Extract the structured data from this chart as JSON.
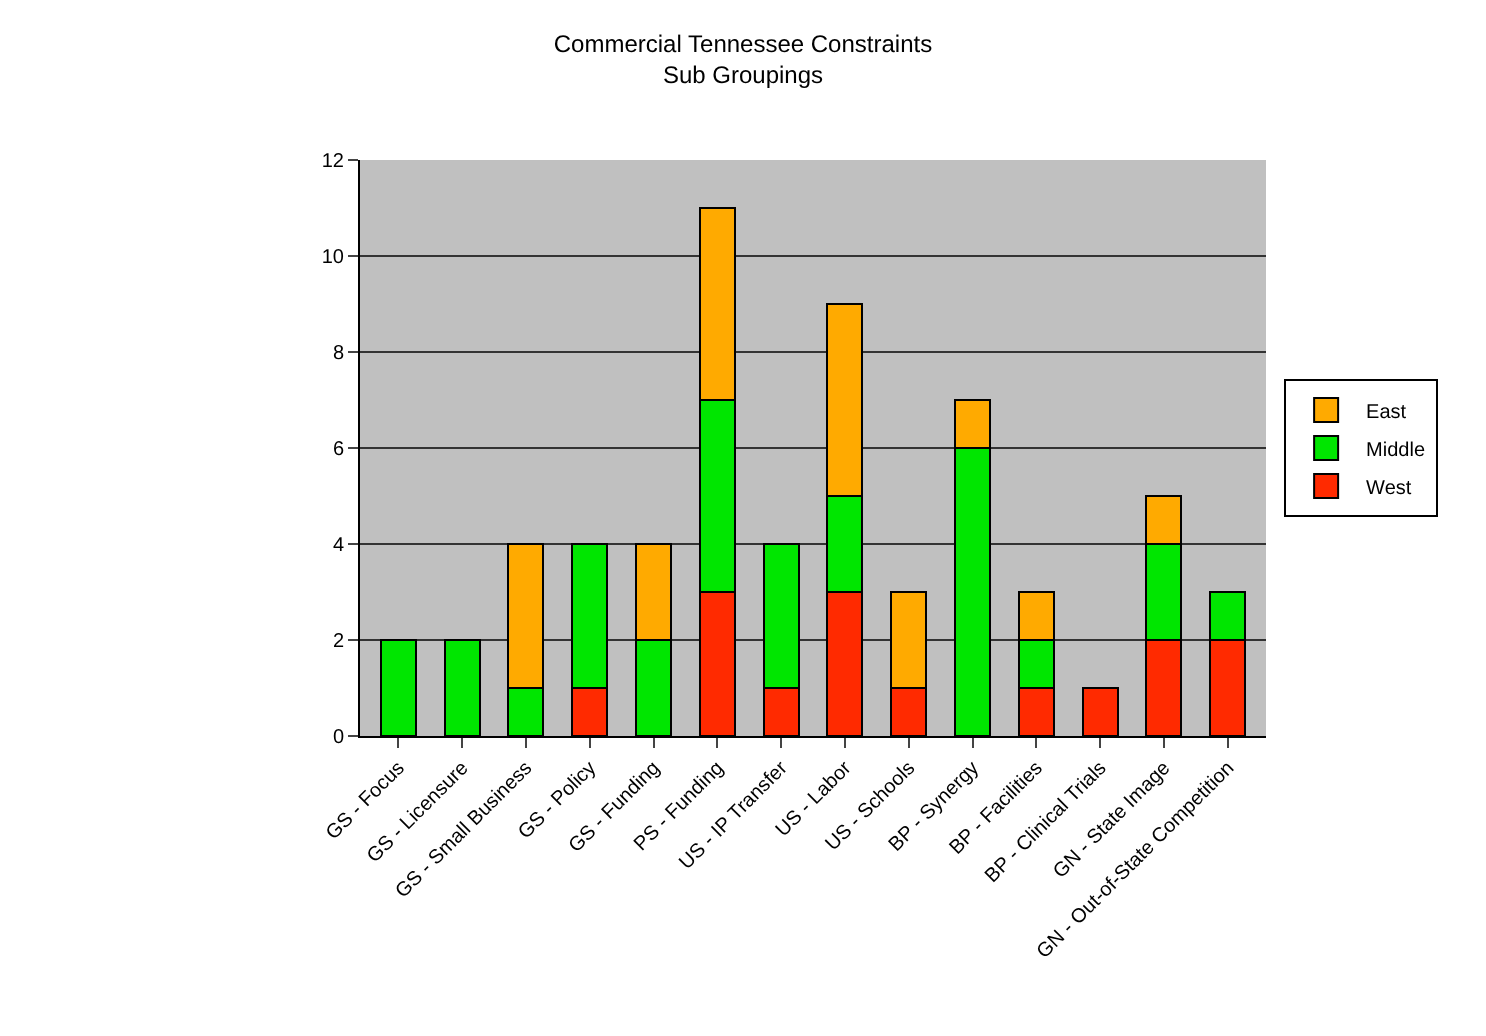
{
  "chart_data": {
    "type": "bar",
    "stacked": true,
    "title": "Commercial Tennessee Constraints\nSub Groupings",
    "categories": [
      "GS - Focus",
      "GS - Licensure",
      "GS - Small Business",
      "GS - Policy",
      "GS - Funding",
      "PS - Funding",
      "US - IP Transfer",
      "US - Labor",
      "US - Schools",
      "BP - Synergy",
      "BP - Facilities",
      "BP - Clinical Trials",
      "GN - State Image",
      "GN - Out-of-State Competition"
    ],
    "series": [
      {
        "name": "West",
        "color": "#ff2a00",
        "values": [
          null,
          null,
          null,
          1,
          null,
          3,
          1,
          3,
          1,
          null,
          1,
          1,
          2,
          2
        ]
      },
      {
        "name": "Middle",
        "color": "#00e600",
        "values": [
          2,
          2,
          1,
          3,
          2,
          4,
          3,
          2,
          null,
          6,
          1,
          null,
          2,
          1
        ]
      },
      {
        "name": "East",
        "color": "#ffaa00",
        "values": [
          null,
          null,
          3,
          null,
          2,
          4,
          null,
          4,
          2,
          1,
          1,
          null,
          1,
          null
        ]
      }
    ],
    "ylim": [
      0,
      12
    ],
    "yticks": [
      0,
      2,
      4,
      6,
      8,
      10,
      12
    ],
    "grid": "y",
    "legend": "right"
  }
}
